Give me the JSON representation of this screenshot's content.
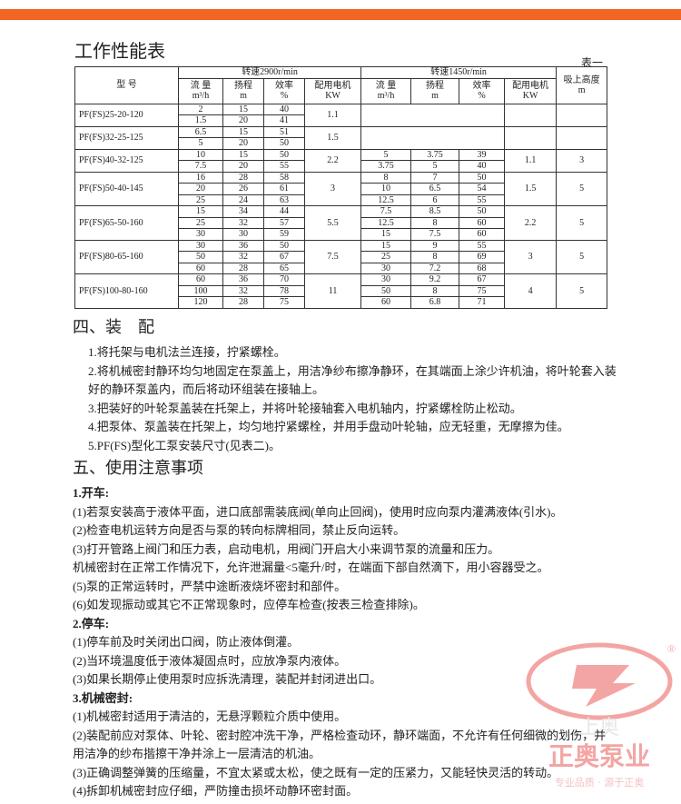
{
  "title": "工作性能表",
  "table_note": "表一",
  "table": {
    "header": {
      "model": "型 号",
      "speed2900": "转速2900r/min",
      "speed1450": "转速1450r/min",
      "suction": [
        "吸上高度",
        "m"
      ],
      "cols": [
        [
          "流 量",
          "m³/h"
        ],
        [
          "扬程",
          "m"
        ],
        [
          "效率",
          "%"
        ],
        [
          "配用电机",
          "KW"
        ]
      ]
    },
    "models": [
      {
        "model": "PF(FS)25-20-120",
        "r2900": [
          [
            "2",
            "15",
            "40"
          ],
          [
            "1.5",
            "20",
            "41"
          ]
        ],
        "motor2900": "1.1",
        "r1450": null,
        "motor1450": null,
        "suction": null
      },
      {
        "model": "PF(FS)32-25-125",
        "r2900": [
          [
            "6.5",
            "15",
            "51"
          ],
          [
            "5",
            "20",
            "50"
          ]
        ],
        "motor2900": "1.5",
        "r1450": null,
        "motor1450": null,
        "suction": null
      },
      {
        "model": "PF(FS)40-32-125",
        "r2900": [
          [
            "10",
            "15",
            "50"
          ],
          [
            "7.5",
            "20",
            "55"
          ]
        ],
        "motor2900": "2.2",
        "r1450": [
          [
            "5",
            "3.75",
            "39"
          ],
          [
            "3.75",
            "5",
            "40"
          ]
        ],
        "motor1450": "1.1",
        "suction": "3"
      },
      {
        "model": "PF(FS)50-40-145",
        "r2900": [
          [
            "16",
            "28",
            "58"
          ],
          [
            "20",
            "26",
            "61"
          ],
          [
            "25",
            "24",
            "63"
          ]
        ],
        "motor2900": "3",
        "r1450": [
          [
            "8",
            "7",
            "50"
          ],
          [
            "10",
            "6.5",
            "54"
          ],
          [
            "12.5",
            "6",
            "55"
          ]
        ],
        "motor1450": "1.5",
        "suction": "5"
      },
      {
        "model": "PF(FS)65-50-160",
        "r2900": [
          [
            "15",
            "34",
            "44"
          ],
          [
            "25",
            "32",
            "57"
          ],
          [
            "30",
            "30",
            "59"
          ]
        ],
        "motor2900": "5.5",
        "r1450": [
          [
            "7.5",
            "8.5",
            "50"
          ],
          [
            "12.5",
            "8",
            "60"
          ],
          [
            "15",
            "7.5",
            "60"
          ]
        ],
        "motor1450": "2.2",
        "suction": "5"
      },
      {
        "model": "PF(FS)80-65-160",
        "r2900": [
          [
            "30",
            "36",
            "50"
          ],
          [
            "50",
            "32",
            "67"
          ],
          [
            "60",
            "28",
            "65"
          ]
        ],
        "motor2900": "7.5",
        "r1450": [
          [
            "15",
            "9",
            "55"
          ],
          [
            "25",
            "8",
            "69"
          ],
          [
            "30",
            "7.2",
            "68"
          ]
        ],
        "motor1450": "3",
        "suction": "5"
      },
      {
        "model": "PF(FS)100-80-160",
        "r2900": [
          [
            "60",
            "36",
            "70"
          ],
          [
            "100",
            "32",
            "78"
          ],
          [
            "120",
            "28",
            "75"
          ]
        ],
        "motor2900": "11",
        "r1450": [
          [
            "30",
            "9.2",
            "67"
          ],
          [
            "50",
            "8",
            "75"
          ],
          [
            "60",
            "6.8",
            "71"
          ]
        ],
        "motor1450": "4",
        "suction": "5"
      }
    ]
  },
  "assembly": {
    "title": "四、装　配",
    "items": [
      "1.将托架与电机法兰连接，拧紧螺栓。",
      "2.将机械密封静环均匀地固定在泵盖上，用洁净纱布擦净静环，在其端面上涂少许机油，将叶轮套入装好的静环泵盖内，而后将动环组装在接轴上。",
      "3.把装好的叶轮泵盖装在托架上，并将叶轮接轴套入电机轴内，拧紧螺栓防止松动。",
      "4.把泵体、泵盖装在托架上，均匀地拧紧螺栓，并用手盘动叶轮轴，应无轻重，无摩擦为佳。",
      "5.PF(FS)型化工泵安装尺寸(见表二)。"
    ]
  },
  "usage": {
    "title": "五、使用注意事项",
    "sections": [
      {
        "heading": "1.开车:",
        "items": [
          "(1)若泵安装高于液体平面，进口底部需装底阀(单向止回阀)，使用时应向泵内灌满液体(引水)。",
          "(2)检查电机运转方向是否与泵的转向标牌相同，禁止反向运转。",
          "(3)打开管路上阀门和压力表，启动电机，用阀门开启大小来调节泵的流量和压力。",
          "机械密封在正常工作情况下，允许泄漏量<5毫升/时，在端面下部自然滴下，用小容器受之。",
          "(5)泵的正常运转时，严禁中途断液烧坏密封和部件。",
          "(6)如发现振动或其它不正常现象时，应停车检查(按表三检查排除)。"
        ]
      },
      {
        "heading": "2.停车:",
        "items": [
          "(1)停车前及时关闭出口阀，防止液体倒灌。",
          "(2)当环境温度低于液体凝固点时，应放净泵内液体。",
          "(3)如果长期停止使用泵时应拆洗清理，装配并封闭进出口。"
        ]
      },
      {
        "heading": "3.机械密封:",
        "items": [
          "(1)机械密封适用于清洁的，无悬浮颗粒介质中使用。",
          "(2)装配前应对泵体、叶轮、密封腔冲洗干净，严格检查动环，静环端面，不允许有任何细微的划伤，并用洁净的纱布揩擦干净并涂上一层清洁的机油。",
          "(3)正确调整弹簧的压缩量，不宜太紧或太松，使之既有一定的压紧力，又能轻快灵活的转动。",
          "(4)拆卸机械密封应仔细，严防撞击损坏动静环密封面。"
        ]
      }
    ]
  },
  "watermark": {
    "mark": "®",
    "brand": "上奥",
    "name": "正奥泵业",
    "slogan": "专业品质 · 源于正奥"
  }
}
